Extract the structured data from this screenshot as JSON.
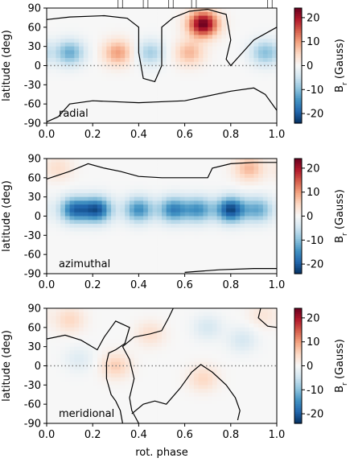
{
  "chart_data": [
    {
      "type": "heatmap",
      "panel_label": "radial",
      "xlabel": "",
      "ylabel": "latitude (deg)",
      "xlim": [
        0.0,
        1.0
      ],
      "ylim": [
        -90,
        90
      ],
      "xticks": [
        "0.0",
        "0.2",
        "0.4",
        "0.6",
        "0.8",
        "1.0"
      ],
      "yticks": [
        "90",
        "60",
        "30",
        "0",
        "-30",
        "-60",
        "-90"
      ],
      "colorbar_label": "B_r (Gauss)",
      "colorbar_ticks": [
        "20",
        "10",
        "0",
        "-10",
        "-20"
      ],
      "clim": [
        -24,
        24
      ],
      "equator_line": true,
      "phase_markers": [
        0.31,
        0.33,
        0.42,
        0.44,
        0.53,
        0.55,
        0.63,
        0.65,
        0.96,
        0.98
      ],
      "features": [
        {
          "phase": 0.1,
          "lat": 20,
          "value": -12
        },
        {
          "phase": 0.31,
          "lat": 20,
          "value": 10
        },
        {
          "phase": 0.45,
          "lat": 20,
          "value": -8
        },
        {
          "phase": 0.68,
          "lat": 65,
          "value": 24
        },
        {
          "phase": 0.62,
          "lat": 20,
          "value": 8
        },
        {
          "phase": 0.95,
          "lat": 20,
          "value": -10
        }
      ],
      "contour": [
        [
          [
            0.0,
            72
          ],
          [
            0.1,
            76
          ],
          [
            0.25,
            78
          ],
          [
            0.35,
            74
          ],
          [
            0.4,
            60
          ],
          [
            0.4,
            20
          ],
          [
            0.42,
            -20
          ],
          [
            0.47,
            -25
          ],
          [
            0.5,
            0
          ],
          [
            0.5,
            60
          ],
          [
            0.55,
            75
          ],
          [
            0.62,
            85
          ],
          [
            0.7,
            88
          ],
          [
            0.78,
            80
          ],
          [
            0.8,
            40
          ],
          [
            0.78,
            10
          ],
          [
            0.8,
            0
          ],
          [
            0.85,
            20
          ],
          [
            0.9,
            40
          ],
          [
            1.0,
            60
          ]
        ],
        [
          [
            0.0,
            -88
          ],
          [
            0.05,
            -80
          ],
          [
            0.1,
            -60
          ],
          [
            0.2,
            -55
          ],
          [
            0.4,
            -58
          ],
          [
            0.6,
            -55
          ],
          [
            0.8,
            -40
          ],
          [
            0.9,
            -35
          ],
          [
            0.95,
            -45
          ],
          [
            1.0,
            -70
          ]
        ]
      ]
    },
    {
      "type": "heatmap",
      "panel_label": "azimuthal",
      "xlabel": "",
      "ylabel": "latitude (deg)",
      "xlim": [
        0.0,
        1.0
      ],
      "ylim": [
        -90,
        90
      ],
      "xticks": [
        "0.0",
        "0.2",
        "0.4",
        "0.6",
        "0.8",
        "1.0"
      ],
      "yticks": [
        "90",
        "60",
        "30",
        "0",
        "-30",
        "-60",
        "-90"
      ],
      "colorbar_label": "B_r (Gauss)",
      "colorbar_ticks": [
        "20",
        "10",
        "0",
        "-10",
        "-20"
      ],
      "clim": [
        -24,
        24
      ],
      "equator_line": false,
      "features": [
        {
          "phase": 0.12,
          "lat": 10,
          "value": -18
        },
        {
          "phase": 0.22,
          "lat": 10,
          "value": -20
        },
        {
          "phase": 0.4,
          "lat": 10,
          "value": -15
        },
        {
          "phase": 0.55,
          "lat": 10,
          "value": -16
        },
        {
          "phase": 0.66,
          "lat": 10,
          "value": -14
        },
        {
          "phase": 0.8,
          "lat": 10,
          "value": -22
        },
        {
          "phase": 0.92,
          "lat": 10,
          "value": -12
        },
        {
          "phase": 0.05,
          "lat": 75,
          "value": 4
        },
        {
          "phase": 0.88,
          "lat": 75,
          "value": 8
        }
      ],
      "contour": [
        [
          [
            0.0,
            58
          ],
          [
            0.1,
            70
          ],
          [
            0.18,
            82
          ],
          [
            0.25,
            75
          ],
          [
            0.32,
            70
          ],
          [
            0.4,
            62
          ],
          [
            0.5,
            60
          ],
          [
            0.62,
            60
          ],
          [
            0.7,
            60
          ],
          [
            0.72,
            75
          ],
          [
            0.8,
            82
          ],
          [
            0.9,
            84
          ],
          [
            1.0,
            84
          ]
        ],
        [
          [
            0.6,
            -88
          ],
          [
            0.75,
            -84
          ],
          [
            0.9,
            -82
          ],
          [
            1.0,
            -82
          ]
        ]
      ]
    },
    {
      "type": "heatmap",
      "panel_label": "meridional",
      "xlabel": "rot. phase",
      "ylabel": "latitude (deg)",
      "xlim": [
        0.0,
        1.0
      ],
      "ylim": [
        -90,
        90
      ],
      "xticks": [
        "0.0",
        "0.2",
        "0.4",
        "0.6",
        "0.8",
        "1.0"
      ],
      "yticks": [
        "90",
        "60",
        "30",
        "0",
        "-30",
        "-60",
        "-90"
      ],
      "colorbar_label": "B_r (Gauss)",
      "colorbar_ticks": [
        "20",
        "10",
        "0",
        "-10",
        "-20"
      ],
      "clim": [
        -24,
        24
      ],
      "equator_line": true,
      "features": [
        {
          "phase": 0.1,
          "lat": 72,
          "value": 5
        },
        {
          "phase": 0.3,
          "lat": 0,
          "value": 6
        },
        {
          "phase": 0.45,
          "lat": 50,
          "value": 4
        },
        {
          "phase": 0.68,
          "lat": -20,
          "value": 5
        },
        {
          "phase": 0.7,
          "lat": 60,
          "value": -4
        },
        {
          "phase": 0.85,
          "lat": 40,
          "value": -4
        },
        {
          "phase": 0.14,
          "lat": 10,
          "value": -3
        },
        {
          "phase": 0.94,
          "lat": 80,
          "value": 3
        }
      ],
      "contour": [
        [
          [
            0.0,
            42
          ],
          [
            0.08,
            48
          ],
          [
            0.15,
            40
          ],
          [
            0.22,
            25
          ],
          [
            0.25,
            45
          ],
          [
            0.28,
            60
          ],
          [
            0.3,
            70
          ],
          [
            0.36,
            60
          ],
          [
            0.34,
            35
          ],
          [
            0.3,
            25
          ],
          [
            0.27,
            20
          ],
          [
            0.26,
            5
          ],
          [
            0.26,
            -20
          ],
          [
            0.28,
            -45
          ],
          [
            0.3,
            -55
          ],
          [
            0.32,
            -70
          ],
          [
            0.33,
            -90
          ]
        ],
        [
          [
            0.4,
            -90
          ],
          [
            0.37,
            -70
          ],
          [
            0.36,
            -50
          ],
          [
            0.38,
            -20
          ],
          [
            0.36,
            10
          ],
          [
            0.33,
            30
          ],
          [
            0.38,
            45
          ],
          [
            0.45,
            50
          ],
          [
            0.5,
            55
          ],
          [
            0.53,
            75
          ],
          [
            0.55,
            90
          ]
        ],
        [
          [
            0.37,
            -75
          ],
          [
            0.42,
            -60
          ],
          [
            0.47,
            -55
          ],
          [
            0.52,
            -60
          ],
          [
            0.58,
            -35
          ],
          [
            0.63,
            -10
          ],
          [
            0.67,
            2
          ],
          [
            0.72,
            -10
          ],
          [
            0.78,
            -30
          ],
          [
            0.82,
            -50
          ],
          [
            0.84,
            -70
          ],
          [
            0.83,
            -85
          ]
        ],
        [
          [
            0.93,
            90
          ],
          [
            0.92,
            75
          ],
          [
            0.96,
            62
          ],
          [
            1.0,
            60
          ]
        ]
      ]
    }
  ]
}
